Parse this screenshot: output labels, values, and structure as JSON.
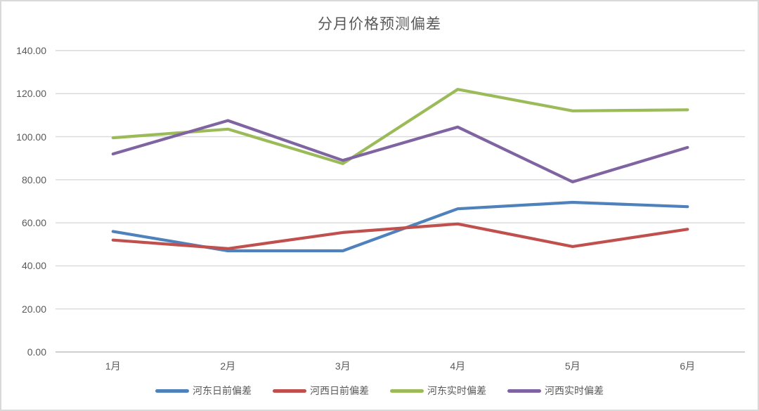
{
  "window": {
    "background_color": "#FFFFFF",
    "border_color": "#D9D9D9"
  },
  "chart_data": {
    "type": "line",
    "title": "分月价格预测偏差",
    "categories": [
      "1月",
      "2月",
      "3月",
      "4月",
      "5月",
      "6月"
    ],
    "series": [
      {
        "name": "河东日前偏差",
        "color": "#4F81BD",
        "values": [
          56,
          47,
          47,
          66.5,
          69.5,
          67.5
        ]
      },
      {
        "name": "河西日前偏差",
        "color": "#C0504D",
        "values": [
          52,
          48,
          55.5,
          59.5,
          49,
          57
        ]
      },
      {
        "name": "河东实时偏差",
        "color": "#9BBB59",
        "values": [
          99.5,
          103.5,
          87.5,
          122,
          112,
          112.5
        ]
      },
      {
        "name": "河西实时偏差",
        "color": "#8064A2",
        "values": [
          92,
          107.5,
          89,
          104.5,
          79,
          95
        ]
      }
    ],
    "xlabel": "",
    "ylabel": "",
    "ylim": [
      0,
      140
    ],
    "ytick_step": 20,
    "y_tick_labels": [
      "0.00",
      "20.00",
      "40.00",
      "60.00",
      "80.00",
      "100.00",
      "120.00",
      "140.00"
    ],
    "grid": true,
    "gridline_color": "#D9D9D9",
    "axis_line_color": "#BFBFBF",
    "text_color": "#595959",
    "legend_position": "bottom"
  }
}
